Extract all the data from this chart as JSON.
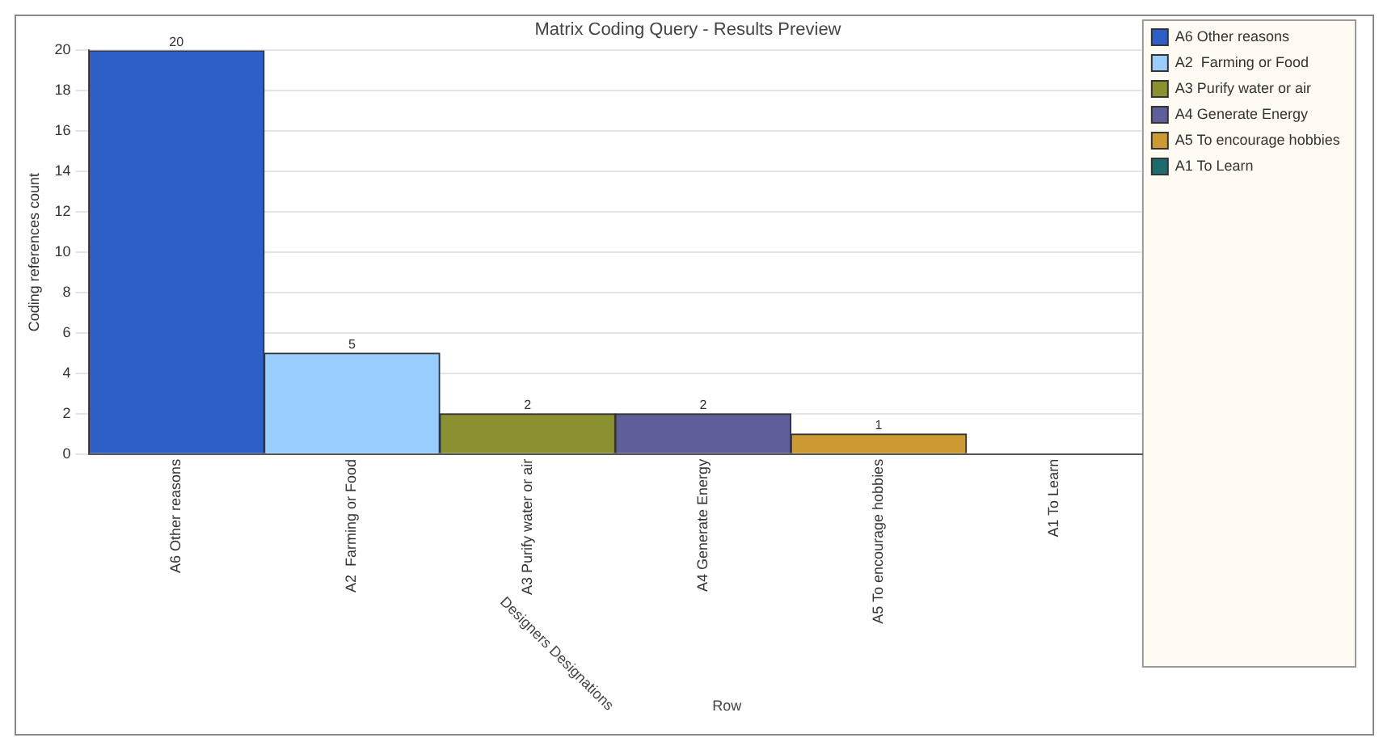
{
  "chart_data": {
    "type": "bar",
    "title": "Matrix Coding Query - Results Preview",
    "xlabel": "Designers Designations",
    "ylabel": "Coding references count",
    "annotations": [
      "Row"
    ],
    "stacked": true,
    "categories": [
      "A6 Other reasons",
      "A2  Farming or Food",
      "A3 Purify water or air",
      "A4 Generate Energy",
      "A5 To encourage hobbies",
      "A1 To Learn"
    ],
    "series": [
      {
        "name": "A6 Other reasons",
        "color": "#2e5fc8",
        "values": [
          20,
          null,
          null,
          null,
          null,
          null
        ],
        "value_labels": [
          "20",
          null,
          null,
          null,
          null,
          null
        ]
      },
      {
        "name": "A2  Farming or Food",
        "color": "#99ccff",
        "values": [
          null,
          5,
          null,
          null,
          null,
          null
        ],
        "value_labels": [
          null,
          "5",
          null,
          null,
          null,
          null
        ]
      },
      {
        "name": "A3 Purify water or air",
        "color": "#8b9130",
        "values": [
          null,
          null,
          2,
          null,
          null,
          null
        ],
        "value_labels": [
          null,
          null,
          "2",
          null,
          null,
          null
        ]
      },
      {
        "name": "A4 Generate Energy",
        "color": "#5e5f9a",
        "values": [
          null,
          null,
          null,
          2,
          null,
          null
        ],
        "value_labels": [
          null,
          null,
          null,
          "2",
          null,
          null
        ]
      },
      {
        "name": "A5 To encourage hobbies",
        "color": "#cc9933",
        "values": [
          null,
          null,
          null,
          null,
          1,
          null
        ],
        "value_labels": [
          null,
          null,
          null,
          null,
          "1",
          null
        ]
      },
      {
        "name": "A1 To Learn",
        "color": "#1f6b6b",
        "values": [
          null,
          null,
          null,
          null,
          null,
          0
        ],
        "value_labels": [
          null,
          null,
          null,
          null,
          null,
          null
        ]
      }
    ],
    "ylim": [
      0,
      20
    ],
    "yticks": [
      0,
      2,
      4,
      6,
      8,
      10,
      12,
      14,
      16,
      18,
      20
    ],
    "grid": "y",
    "legend": "right"
  }
}
